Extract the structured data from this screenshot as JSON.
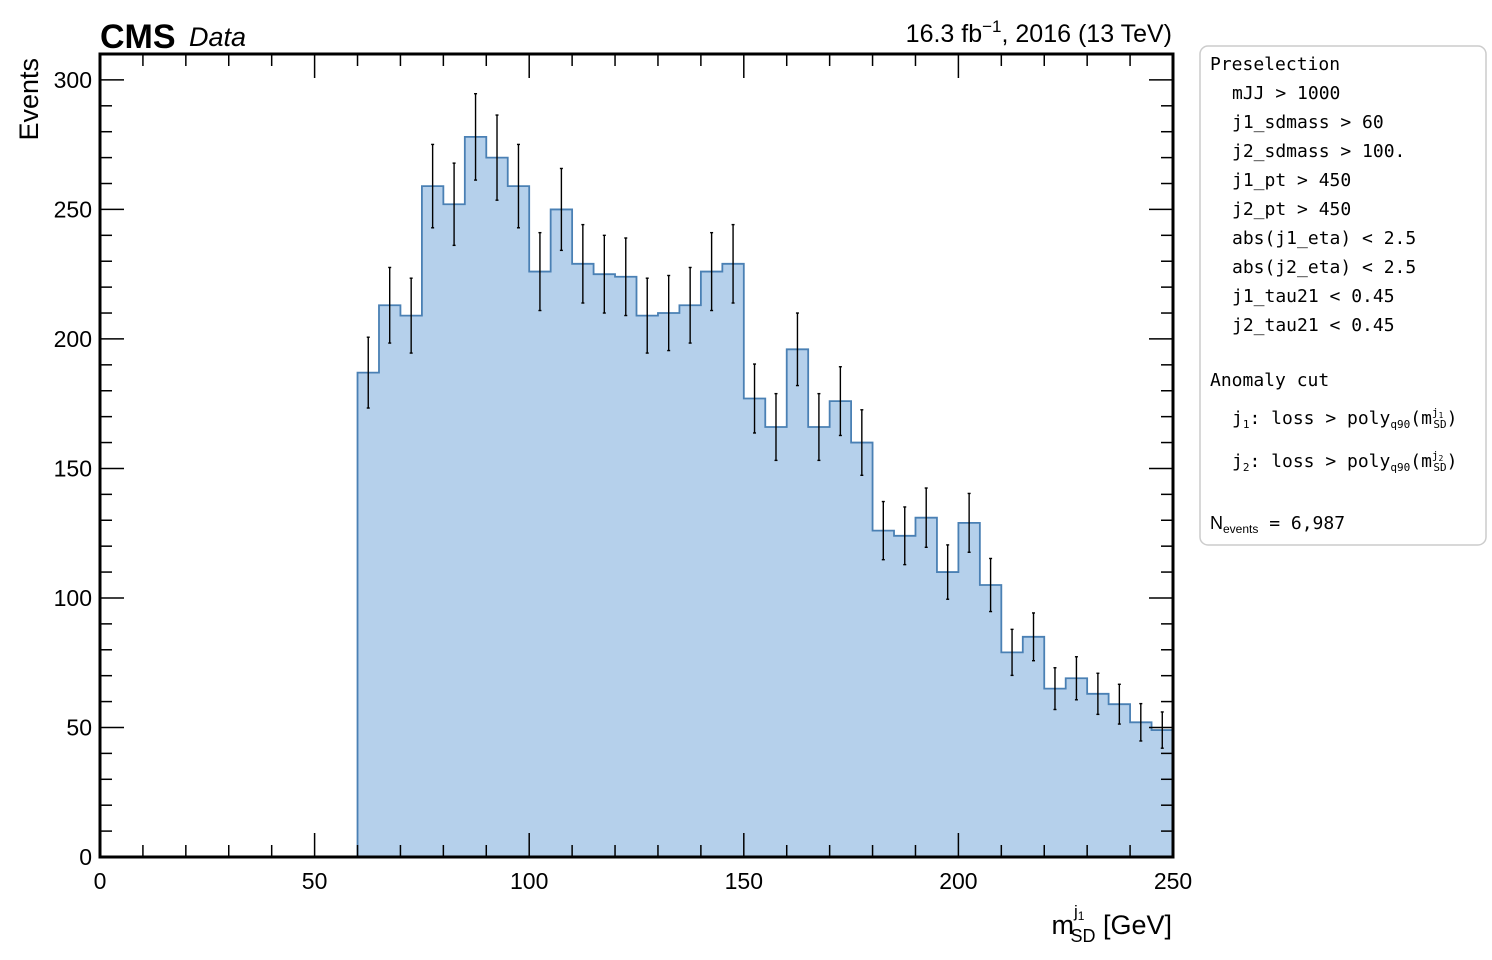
{
  "header": {
    "experiment": "CMS",
    "label": "Data",
    "lumi": "16.3 fb",
    "lumi_exp": "−1",
    "lumi_rest": ", 2016 (13 TeV)"
  },
  "chart_data": {
    "type": "histogram",
    "xlabel_main": "m",
    "xlabel_sub": "SD",
    "xlabel_sup": "j",
    "xlabel_supsub": "1",
    "xlabel_unit": " [GeV]",
    "ylabel": "Events",
    "xlim": [
      0,
      250
    ],
    "ylim": [
      0,
      310
    ],
    "xticks": [
      0,
      50,
      100,
      150,
      200,
      250
    ],
    "yticks": [
      0,
      50,
      100,
      150,
      200,
      250,
      300
    ],
    "bin_width": 5,
    "bin_edges_start": 60,
    "values": [
      187,
      213,
      209,
      259,
      252,
      278,
      270,
      259,
      226,
      250,
      229,
      225,
      224,
      209,
      210,
      213,
      226,
      229,
      177,
      166,
      196,
      166,
      176,
      160,
      126,
      124,
      131,
      110,
      129,
      105,
      79,
      85,
      65,
      69,
      63,
      59,
      52,
      49
    ],
    "fill_color": "#b5d0eb",
    "edge_color": "#4a80b4",
    "errorbar_color": "#000000"
  },
  "legend": {
    "preselection_title": "Preselection",
    "cuts": [
      "mJJ > 1000",
      "j1_sdmass > 60",
      "j2_sdmass > 100.",
      "j1_pt > 450",
      "j2_pt > 450",
      "abs(j1_eta) < 2.5",
      "abs(j2_eta) < 2.5",
      "j1_tau21 < 0.45",
      "j2_tau21 < 0.45"
    ],
    "anomaly_title": "Anomaly cut",
    "anomaly_lines": [
      {
        "j": "j",
        "jsub": "1",
        "text": ": loss > poly",
        "polysub": "q90",
        "m": "(m",
        "msup": "j",
        "msupsub": "1",
        "msub": "SD",
        "close": ")"
      },
      {
        "j": "j",
        "jsub": "2",
        "text": ": loss > poly",
        "polysub": "q90",
        "m": "(m",
        "msup": "j",
        "msupsub": "2",
        "msub": "SD",
        "close": ")"
      }
    ],
    "nevents_main": "N",
    "nevents_sub": "events",
    "nevents_value": " = 6,987"
  }
}
